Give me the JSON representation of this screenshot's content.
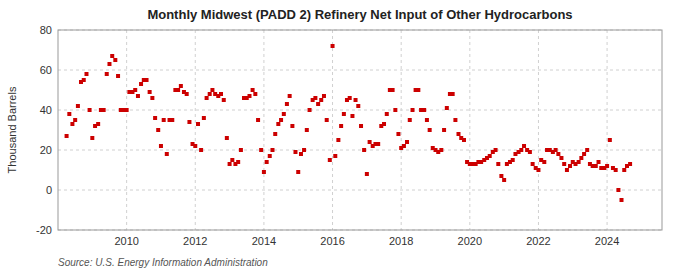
{
  "chart_data": {
    "type": "scatter",
    "title": "Monthly Midwest (PADD 2) Refinery Net Input of Other Hydrocarbons",
    "ylabel": "Thousand Barrels",
    "source": "Source: U.S. Energy Information Administration",
    "color": "#cc0000",
    "marker": "square",
    "grid": true,
    "xlim": [
      2008.0,
      2025.6
    ],
    "xticks": [
      2010,
      2012,
      2014,
      2016,
      2018,
      2020,
      2022,
      2024
    ],
    "ylim": [
      -20,
      80
    ],
    "yticks": [
      -20,
      0,
      20,
      40,
      60,
      80
    ],
    "x": [
      2008.25,
      2008.33,
      2008.42,
      2008.5,
      2008.58,
      2008.67,
      2008.75,
      2008.83,
      2008.92,
      2009.0,
      2009.08,
      2009.17,
      2009.25,
      2009.33,
      2009.42,
      2009.5,
      2009.58,
      2009.67,
      2009.75,
      2009.83,
      2009.92,
      2010.0,
      2010.08,
      2010.17,
      2010.25,
      2010.33,
      2010.42,
      2010.5,
      2010.58,
      2010.67,
      2010.75,
      2010.83,
      2010.92,
      2011.0,
      2011.08,
      2011.17,
      2011.25,
      2011.33,
      2011.42,
      2011.5,
      2011.58,
      2011.67,
      2011.75,
      2011.83,
      2011.92,
      2012.0,
      2012.08,
      2012.17,
      2012.25,
      2012.33,
      2012.42,
      2012.5,
      2012.58,
      2012.67,
      2012.75,
      2012.83,
      2012.92,
      2013.0,
      2013.08,
      2013.17,
      2013.25,
      2013.33,
      2013.42,
      2013.5,
      2013.58,
      2013.67,
      2013.75,
      2013.83,
      2013.92,
      2014.0,
      2014.08,
      2014.17,
      2014.25,
      2014.33,
      2014.42,
      2014.5,
      2014.58,
      2014.67,
      2014.75,
      2014.83,
      2014.92,
      2015.0,
      2015.08,
      2015.17,
      2015.25,
      2015.33,
      2015.42,
      2015.5,
      2015.58,
      2015.67,
      2015.75,
      2015.83,
      2015.92,
      2016.0,
      2016.08,
      2016.17,
      2016.25,
      2016.33,
      2016.42,
      2016.5,
      2016.58,
      2016.67,
      2016.75,
      2016.83,
      2016.92,
      2017.0,
      2017.08,
      2017.17,
      2017.25,
      2017.33,
      2017.42,
      2017.5,
      2017.58,
      2017.67,
      2017.75,
      2017.83,
      2017.92,
      2018.0,
      2018.08,
      2018.17,
      2018.25,
      2018.33,
      2018.42,
      2018.5,
      2018.58,
      2018.67,
      2018.75,
      2018.83,
      2018.92,
      2019.0,
      2019.08,
      2019.17,
      2019.25,
      2019.33,
      2019.42,
      2019.5,
      2019.58,
      2019.67,
      2019.75,
      2019.83,
      2019.92,
      2020.0,
      2020.08,
      2020.17,
      2020.25,
      2020.33,
      2020.42,
      2020.5,
      2020.58,
      2020.67,
      2020.75,
      2020.83,
      2020.92,
      2021.0,
      2021.08,
      2021.17,
      2021.25,
      2021.33,
      2021.42,
      2021.5,
      2021.58,
      2021.67,
      2021.75,
      2021.83,
      2021.92,
      2022.0,
      2022.08,
      2022.17,
      2022.25,
      2022.33,
      2022.42,
      2022.5,
      2022.58,
      2022.67,
      2022.75,
      2022.83,
      2022.92,
      2023.0,
      2023.08,
      2023.17,
      2023.25,
      2023.33,
      2023.42,
      2023.5,
      2023.58,
      2023.67,
      2023.75,
      2023.83,
      2023.92,
      2024.0,
      2024.08,
      2024.17,
      2024.25,
      2024.33,
      2024.42,
      2024.5,
      2024.58,
      2024.67
    ],
    "values": [
      27,
      38,
      33,
      35,
      42,
      54,
      55,
      58,
      40,
      26,
      32,
      33,
      40,
      40,
      58,
      63,
      67,
      65,
      57,
      40,
      40,
      40,
      49,
      49,
      50,
      47,
      53,
      55,
      55,
      49,
      46,
      36,
      30,
      22,
      35,
      18,
      35,
      35,
      50,
      50,
      52,
      49,
      48,
      34,
      23,
      22,
      33,
      20,
      36,
      46,
      48,
      50,
      48,
      47,
      48,
      45,
      26,
      13,
      15,
      13,
      14,
      20,
      46,
      46,
      47,
      50,
      48,
      35,
      20,
      9,
      14,
      17,
      20,
      28,
      33,
      35,
      38,
      43,
      47,
      32,
      19,
      9,
      18,
      20,
      30,
      40,
      45,
      46,
      43,
      45,
      47,
      35,
      15,
      72,
      17,
      25,
      32,
      38,
      45,
      46,
      37,
      45,
      42,
      32,
      20,
      8,
      24,
      22,
      23,
      23,
      32,
      33,
      38,
      50,
      50,
      40,
      28,
      21,
      22,
      24,
      35,
      40,
      50,
      50,
      40,
      40,
      35,
      30,
      21,
      20,
      19,
      20,
      30,
      41,
      48,
      48,
      35,
      28,
      26,
      25,
      14,
      13,
      13,
      13,
      14,
      14,
      15,
      16,
      17,
      19,
      20,
      13,
      7,
      5,
      13,
      14,
      15,
      18,
      19,
      20,
      22,
      20,
      19,
      13,
      11,
      10,
      15,
      14,
      20,
      20,
      19,
      20,
      18,
      16,
      13,
      10,
      12,
      14,
      13,
      14,
      16,
      18,
      20,
      13,
      12,
      12,
      14,
      11,
      11,
      12,
      25,
      11,
      10,
      0,
      -5,
      10,
      12,
      13
    ]
  }
}
